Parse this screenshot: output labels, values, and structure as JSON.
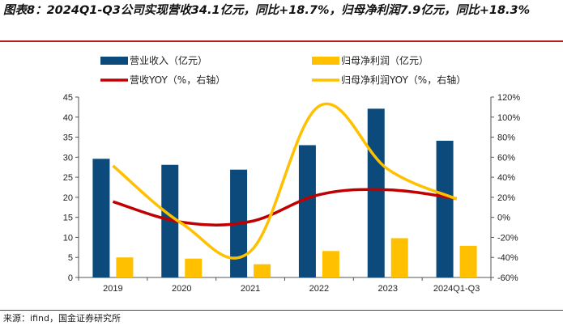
{
  "title": "图表8：2024Q1-Q3公司实现营收34.1亿元，同比+18.7%，归母净利润7.9亿元，同比+18.3%",
  "source": "来源：ifind，国金证券研究所",
  "colors": {
    "revenue_bar": "#0b4a7a",
    "profit_bar": "#ffc000",
    "revenue_yoy_line": "#c00000",
    "profit_yoy_line": "#ffc000"
  },
  "chart_data": {
    "type": "bar",
    "categories": [
      "2019",
      "2020",
      "2021",
      "2022",
      "2023",
      "2024Q1-Q3"
    ],
    "series": [
      {
        "name": "营业收入（亿元）",
        "type": "bar",
        "axis": "left",
        "values": [
          29.6,
          28.1,
          26.9,
          33.0,
          42.1,
          34.1
        ]
      },
      {
        "name": "归母净利润（亿元）",
        "type": "bar",
        "axis": "left",
        "values": [
          5.0,
          4.7,
          3.3,
          6.6,
          9.8,
          7.9
        ]
      },
      {
        "name": "营收YOY（%，右轴）",
        "type": "line",
        "axis": "right",
        "values": [
          15.6,
          -4.8,
          -4.2,
          22.6,
          27.5,
          18.7
        ]
      },
      {
        "name": "归母净利润YOY（%，右轴）",
        "type": "line",
        "axis": "right",
        "values": [
          51.5,
          -6.0,
          -34.0,
          111.0,
          48.0,
          18.3
        ]
      }
    ],
    "y_left": {
      "min": 0,
      "max": 45,
      "step": 5,
      "ticks": [
        "0",
        "5",
        "10",
        "15",
        "20",
        "25",
        "30",
        "35",
        "40",
        "45"
      ]
    },
    "y_right": {
      "min": -60,
      "max": 120,
      "step": 20,
      "ticks": [
        "-60%",
        "-40%",
        "-20%",
        "0%",
        "20%",
        "40%",
        "60%",
        "80%",
        "100%",
        "120%"
      ]
    },
    "grid": false,
    "legend_position": "top"
  }
}
